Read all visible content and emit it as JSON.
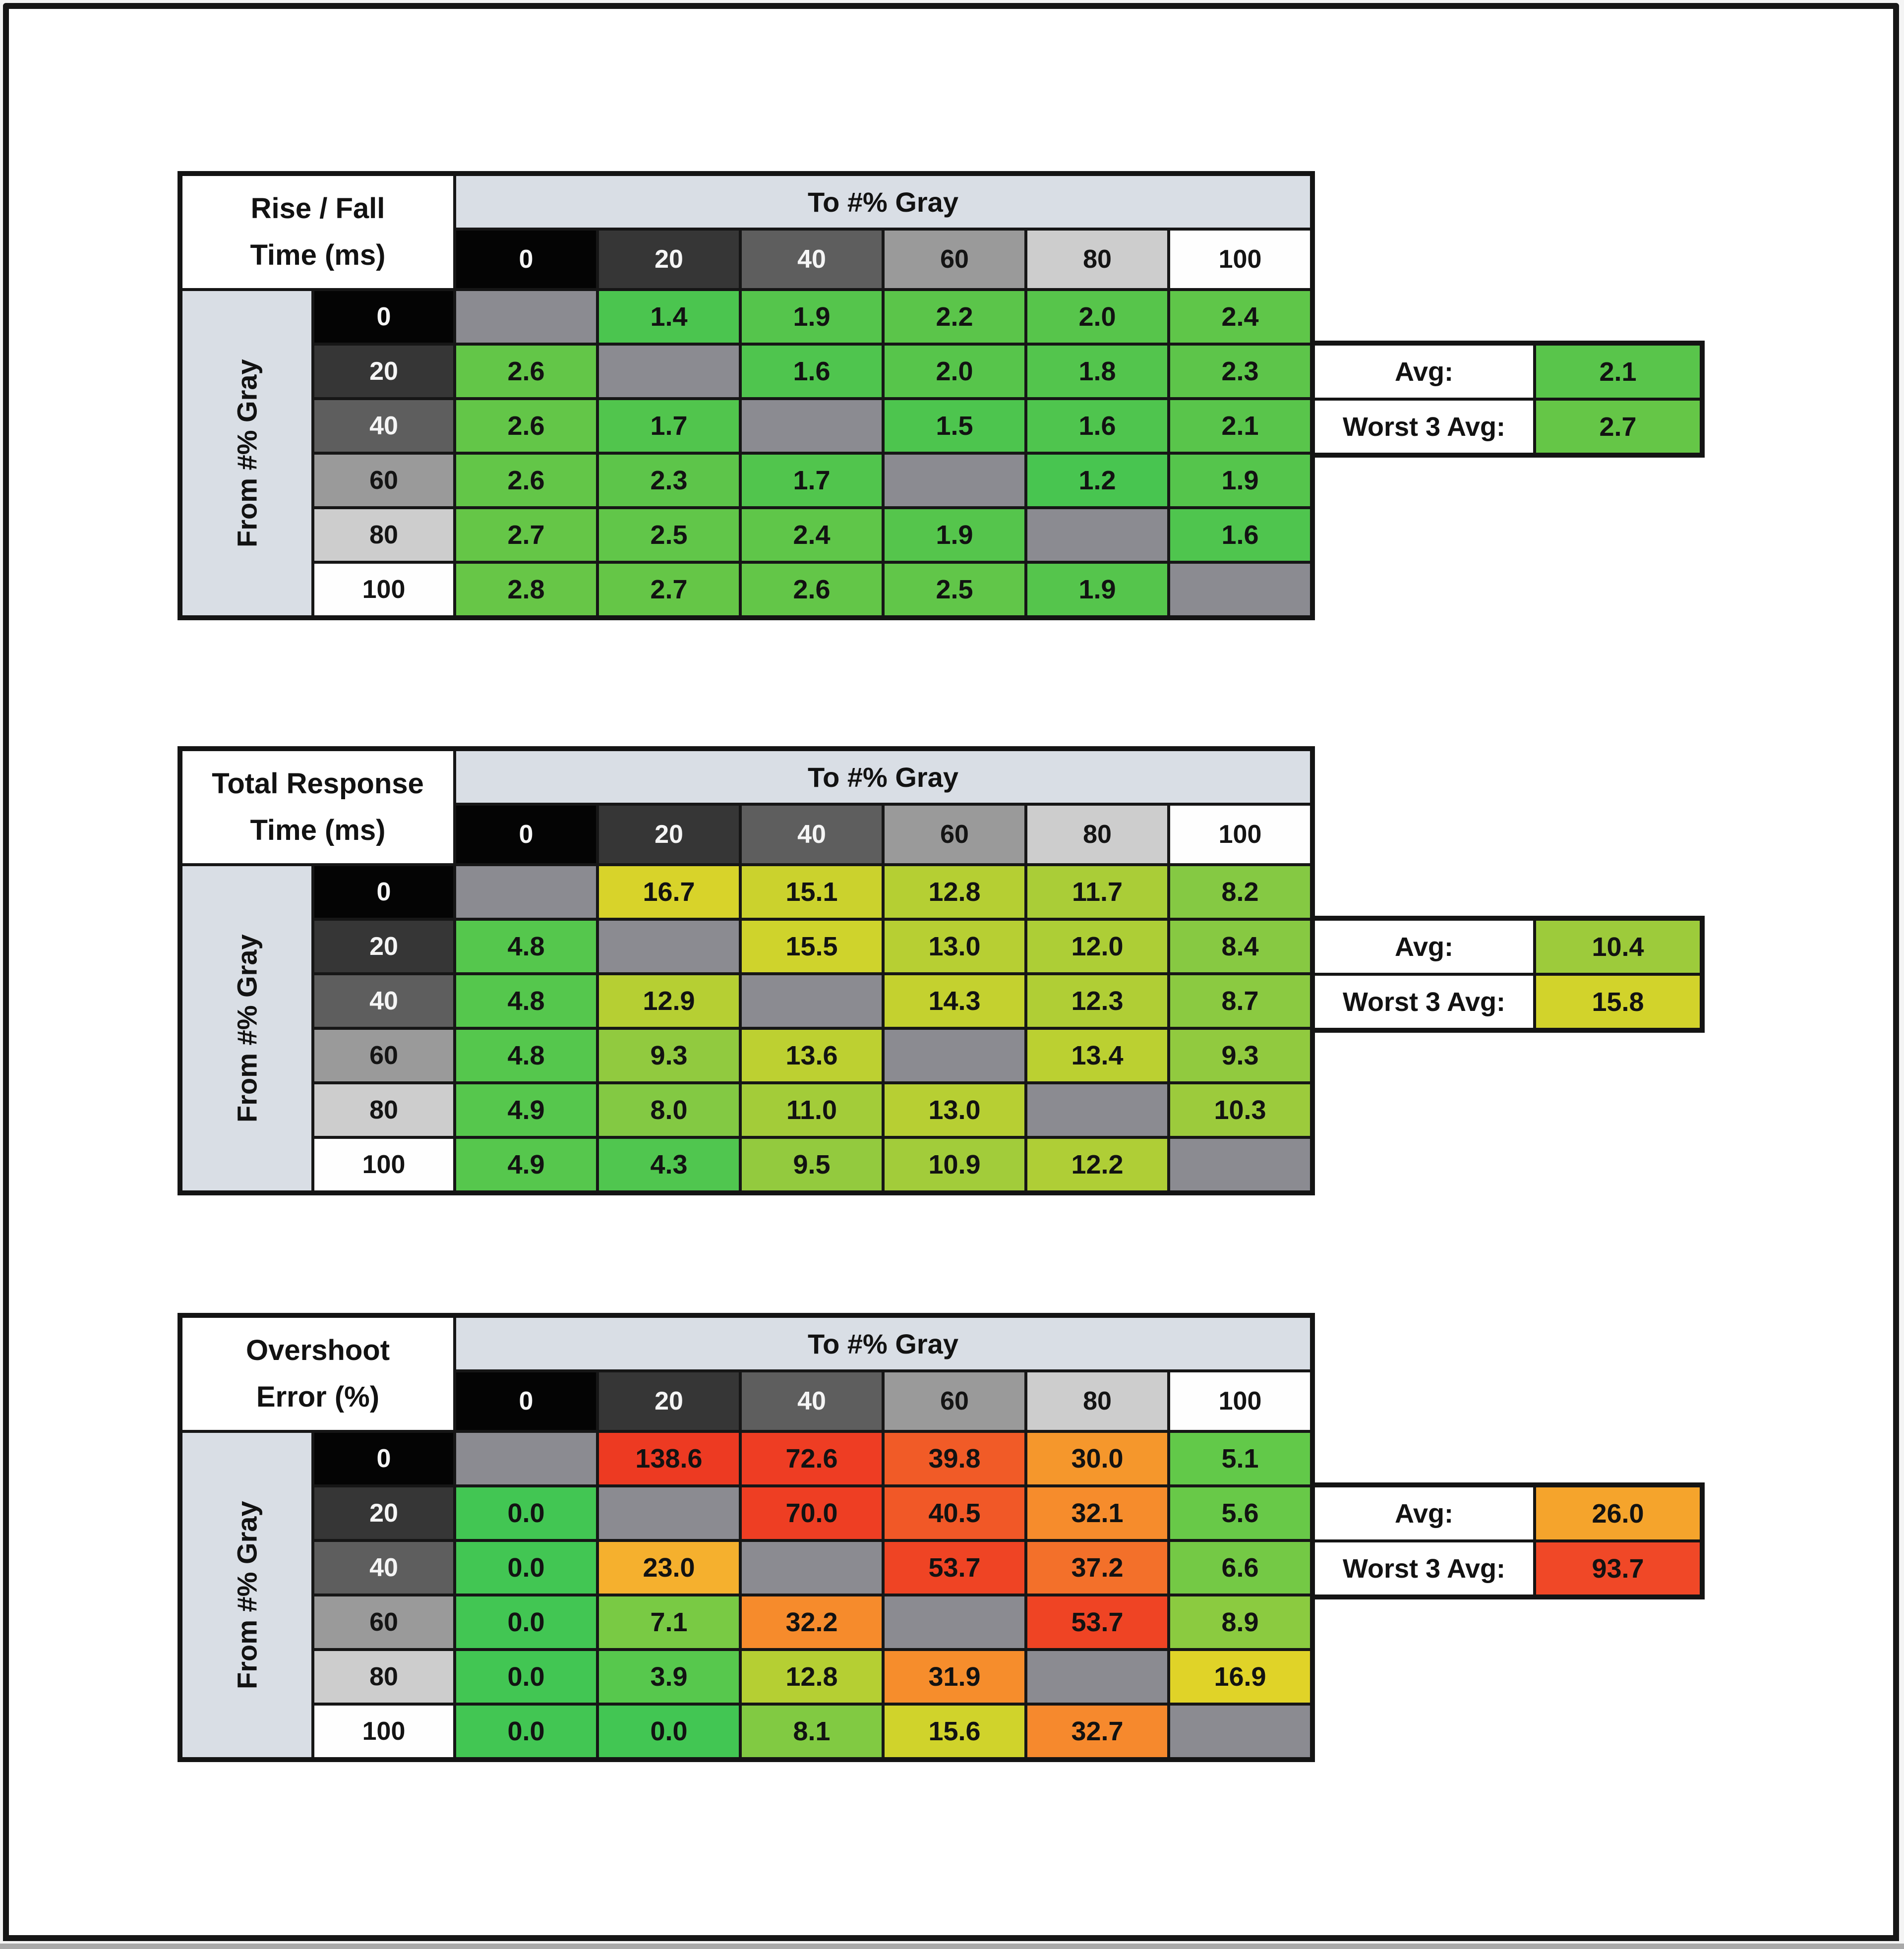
{
  "window": {
    "background": "#ffffff",
    "frame_border_color": "#161616",
    "bottom_strip_color": "#a9a9a9"
  },
  "axis": {
    "to_label": "To #% Gray",
    "from_label": "From #% Gray",
    "levels": [
      "0",
      "20",
      "40",
      "60",
      "80",
      "100"
    ],
    "level_bg": [
      "#040404",
      "#363636",
      "#5e5e5e",
      "#9a9a9a",
      "#cdcdcd",
      "#fefefe"
    ],
    "level_fg": [
      "#f5f5f5",
      "#f5f5f5",
      "#f5f5f5",
      "#141414",
      "#141414",
      "#141414"
    ],
    "band_color": "#d9dee5",
    "diagonal_color": "#8b8b91",
    "gridline_color": "#161616"
  },
  "tables": [
    {
      "title_line1": "Rise / Fall",
      "title_line2": "Time (ms)",
      "avg_label": "Avg:",
      "worst_label": "Worst 3 Avg:",
      "avg_value": "2.1",
      "avg_color": "#59c54b",
      "worst_value": "2.7",
      "worst_color": "#65c647",
      "rows": [
        {
          "from": "0",
          "cells": [
            null,
            {
              "v": "1.4",
              "c": "#4bc54f"
            },
            {
              "v": "1.9",
              "c": "#55c54c"
            },
            {
              "v": "2.2",
              "c": "#5bc54a"
            },
            {
              "v": "2.0",
              "c": "#57c54b"
            },
            {
              "v": "2.4",
              "c": "#5fc649"
            }
          ]
        },
        {
          "from": "20",
          "cells": [
            {
              "v": "2.6",
              "c": "#63c648"
            },
            null,
            {
              "v": "1.6",
              "c": "#4fc54e"
            },
            {
              "v": "2.0",
              "c": "#57c54b"
            },
            {
              "v": "1.8",
              "c": "#53c54d"
            },
            {
              "v": "2.3",
              "c": "#5dc54a"
            }
          ]
        },
        {
          "from": "40",
          "cells": [
            {
              "v": "2.6",
              "c": "#63c648"
            },
            {
              "v": "1.7",
              "c": "#51c54d"
            },
            null,
            {
              "v": "1.5",
              "c": "#4dc54e"
            },
            {
              "v": "1.6",
              "c": "#4fc54e"
            },
            {
              "v": "2.1",
              "c": "#59c54b"
            }
          ]
        },
        {
          "from": "60",
          "cells": [
            {
              "v": "2.6",
              "c": "#63c648"
            },
            {
              "v": "2.3",
              "c": "#5dc54a"
            },
            {
              "v": "1.7",
              "c": "#51c54d"
            },
            null,
            {
              "v": "1.2",
              "c": "#48c550"
            },
            {
              "v": "1.9",
              "c": "#55c54c"
            }
          ]
        },
        {
          "from": "80",
          "cells": [
            {
              "v": "2.7",
              "c": "#65c647"
            },
            {
              "v": "2.5",
              "c": "#61c649"
            },
            {
              "v": "2.4",
              "c": "#5fc649"
            },
            {
              "v": "1.9",
              "c": "#55c54c"
            },
            null,
            {
              "v": "1.6",
              "c": "#4fc54e"
            }
          ]
        },
        {
          "from": "100",
          "cells": [
            {
              "v": "2.8",
              "c": "#67c647"
            },
            {
              "v": "2.7",
              "c": "#65c647"
            },
            {
              "v": "2.6",
              "c": "#63c648"
            },
            {
              "v": "2.5",
              "c": "#61c649"
            },
            {
              "v": "1.9",
              "c": "#55c54c"
            },
            null
          ]
        }
      ]
    },
    {
      "title_line1": "Total Response",
      "title_line2": "Time (ms)",
      "avg_label": "Avg:",
      "worst_label": "Worst 3 Avg:",
      "avg_value": "10.4",
      "avg_color": "#9dcb3b",
      "worst_value": "15.8",
      "worst_color": "#d2d32b",
      "rows": [
        {
          "from": "0",
          "cells": [
            null,
            {
              "v": "16.7",
              "c": "#d8d32a"
            },
            {
              "v": "15.1",
              "c": "#cbd22d"
            },
            {
              "v": "12.8",
              "c": "#b5cf33"
            },
            {
              "v": "11.7",
              "c": "#aacd37"
            },
            {
              "v": "8.2",
              "c": "#85c943"
            }
          ]
        },
        {
          "from": "20",
          "cells": [
            {
              "v": "4.8",
              "c": "#55c74d"
            },
            null,
            {
              "v": "15.5",
              "c": "#cfd32c"
            },
            {
              "v": "13.0",
              "c": "#b7cf33"
            },
            {
              "v": "12.0",
              "c": "#adce36"
            },
            {
              "v": "8.4",
              "c": "#87c942"
            }
          ]
        },
        {
          "from": "40",
          "cells": [
            {
              "v": "4.8",
              "c": "#55c74d"
            },
            {
              "v": "12.9",
              "c": "#b6cf33"
            },
            null,
            {
              "v": "14.3",
              "c": "#c4d12f"
            },
            {
              "v": "12.3",
              "c": "#b0ce35"
            },
            {
              "v": "8.7",
              "c": "#8bca41"
            }
          ]
        },
        {
          "from": "60",
          "cells": [
            {
              "v": "4.8",
              "c": "#55c74d"
            },
            {
              "v": "9.3",
              "c": "#91ca3f"
            },
            {
              "v": "13.6",
              "c": "#bdd031"
            },
            null,
            {
              "v": "13.4",
              "c": "#bbd031"
            },
            {
              "v": "9.3",
              "c": "#91ca3f"
            }
          ]
        },
        {
          "from": "80",
          "cells": [
            {
              "v": "4.9",
              "c": "#56c74d"
            },
            {
              "v": "8.0",
              "c": "#83c943"
            },
            {
              "v": "11.0",
              "c": "#a3cc39"
            },
            {
              "v": "13.0",
              "c": "#b7cf33"
            },
            null,
            {
              "v": "10.3",
              "c": "#9ccb3c"
            }
          ]
        },
        {
          "from": "100",
          "cells": [
            {
              "v": "4.9",
              "c": "#56c74d"
            },
            {
              "v": "4.3",
              "c": "#50c64f"
            },
            {
              "v": "9.5",
              "c": "#93ca3e"
            },
            {
              "v": "10.9",
              "c": "#a2cc3a"
            },
            {
              "v": "12.2",
              "c": "#afce36"
            },
            null
          ]
        }
      ]
    },
    {
      "title_line1": "Overshoot",
      "title_line2": "Error (%)",
      "avg_label": "Avg:",
      "worst_label": "Worst 3 Avg:",
      "avg_value": "26.0",
      "avg_color": "#f5a42c",
      "worst_value": "93.7",
      "worst_color": "#f04827",
      "rows": [
        {
          "from": "0",
          "cells": [
            null,
            {
              "v": "138.6",
              "c": "#ed3a22"
            },
            {
              "v": "72.6",
              "c": "#ee3d23"
            },
            {
              "v": "39.8",
              "c": "#f15b27"
            },
            {
              "v": "30.0",
              "c": "#f5972c"
            },
            {
              "v": "5.1",
              "c": "#62c949"
            }
          ]
        },
        {
          "from": "20",
          "cells": [
            {
              "v": "0.0",
              "c": "#42c653"
            },
            null,
            {
              "v": "70.0",
              "c": "#ee3e23"
            },
            {
              "v": "40.5",
              "c": "#f15827"
            },
            {
              "v": "32.1",
              "c": "#f68c2c"
            },
            {
              "v": "5.6",
              "c": "#68c948"
            }
          ]
        },
        {
          "from": "40",
          "cells": [
            {
              "v": "0.0",
              "c": "#42c653"
            },
            {
              "v": "23.0",
              "c": "#f5b02e"
            },
            null,
            {
              "v": "53.7",
              "c": "#ef4424"
            },
            {
              "v": "37.2",
              "c": "#f3702a"
            },
            {
              "v": "6.6",
              "c": "#74c945"
            }
          ]
        },
        {
          "from": "60",
          "cells": [
            {
              "v": "0.0",
              "c": "#42c653"
            },
            {
              "v": "7.1",
              "c": "#79ca44"
            },
            {
              "v": "32.2",
              "c": "#f68b2c"
            },
            null,
            {
              "v": "53.7",
              "c": "#ef4424"
            },
            {
              "v": "8.9",
              "c": "#8bcb40"
            }
          ]
        },
        {
          "from": "80",
          "cells": [
            {
              "v": "0.0",
              "c": "#42c653"
            },
            {
              "v": "3.9",
              "c": "#57c84d"
            },
            {
              "v": "12.8",
              "c": "#b5cf33"
            },
            {
              "v": "31.9",
              "c": "#f68d2c"
            },
            null,
            {
              "v": "16.9",
              "c": "#e0d328"
            }
          ]
        },
        {
          "from": "100",
          "cells": [
            {
              "v": "0.0",
              "c": "#42c653"
            },
            {
              "v": "0.0",
              "c": "#42c653"
            },
            {
              "v": "8.1",
              "c": "#81ca42"
            },
            {
              "v": "15.6",
              "c": "#d0d32b"
            },
            {
              "v": "32.7",
              "c": "#f6892d"
            },
            null
          ]
        }
      ]
    }
  ]
}
